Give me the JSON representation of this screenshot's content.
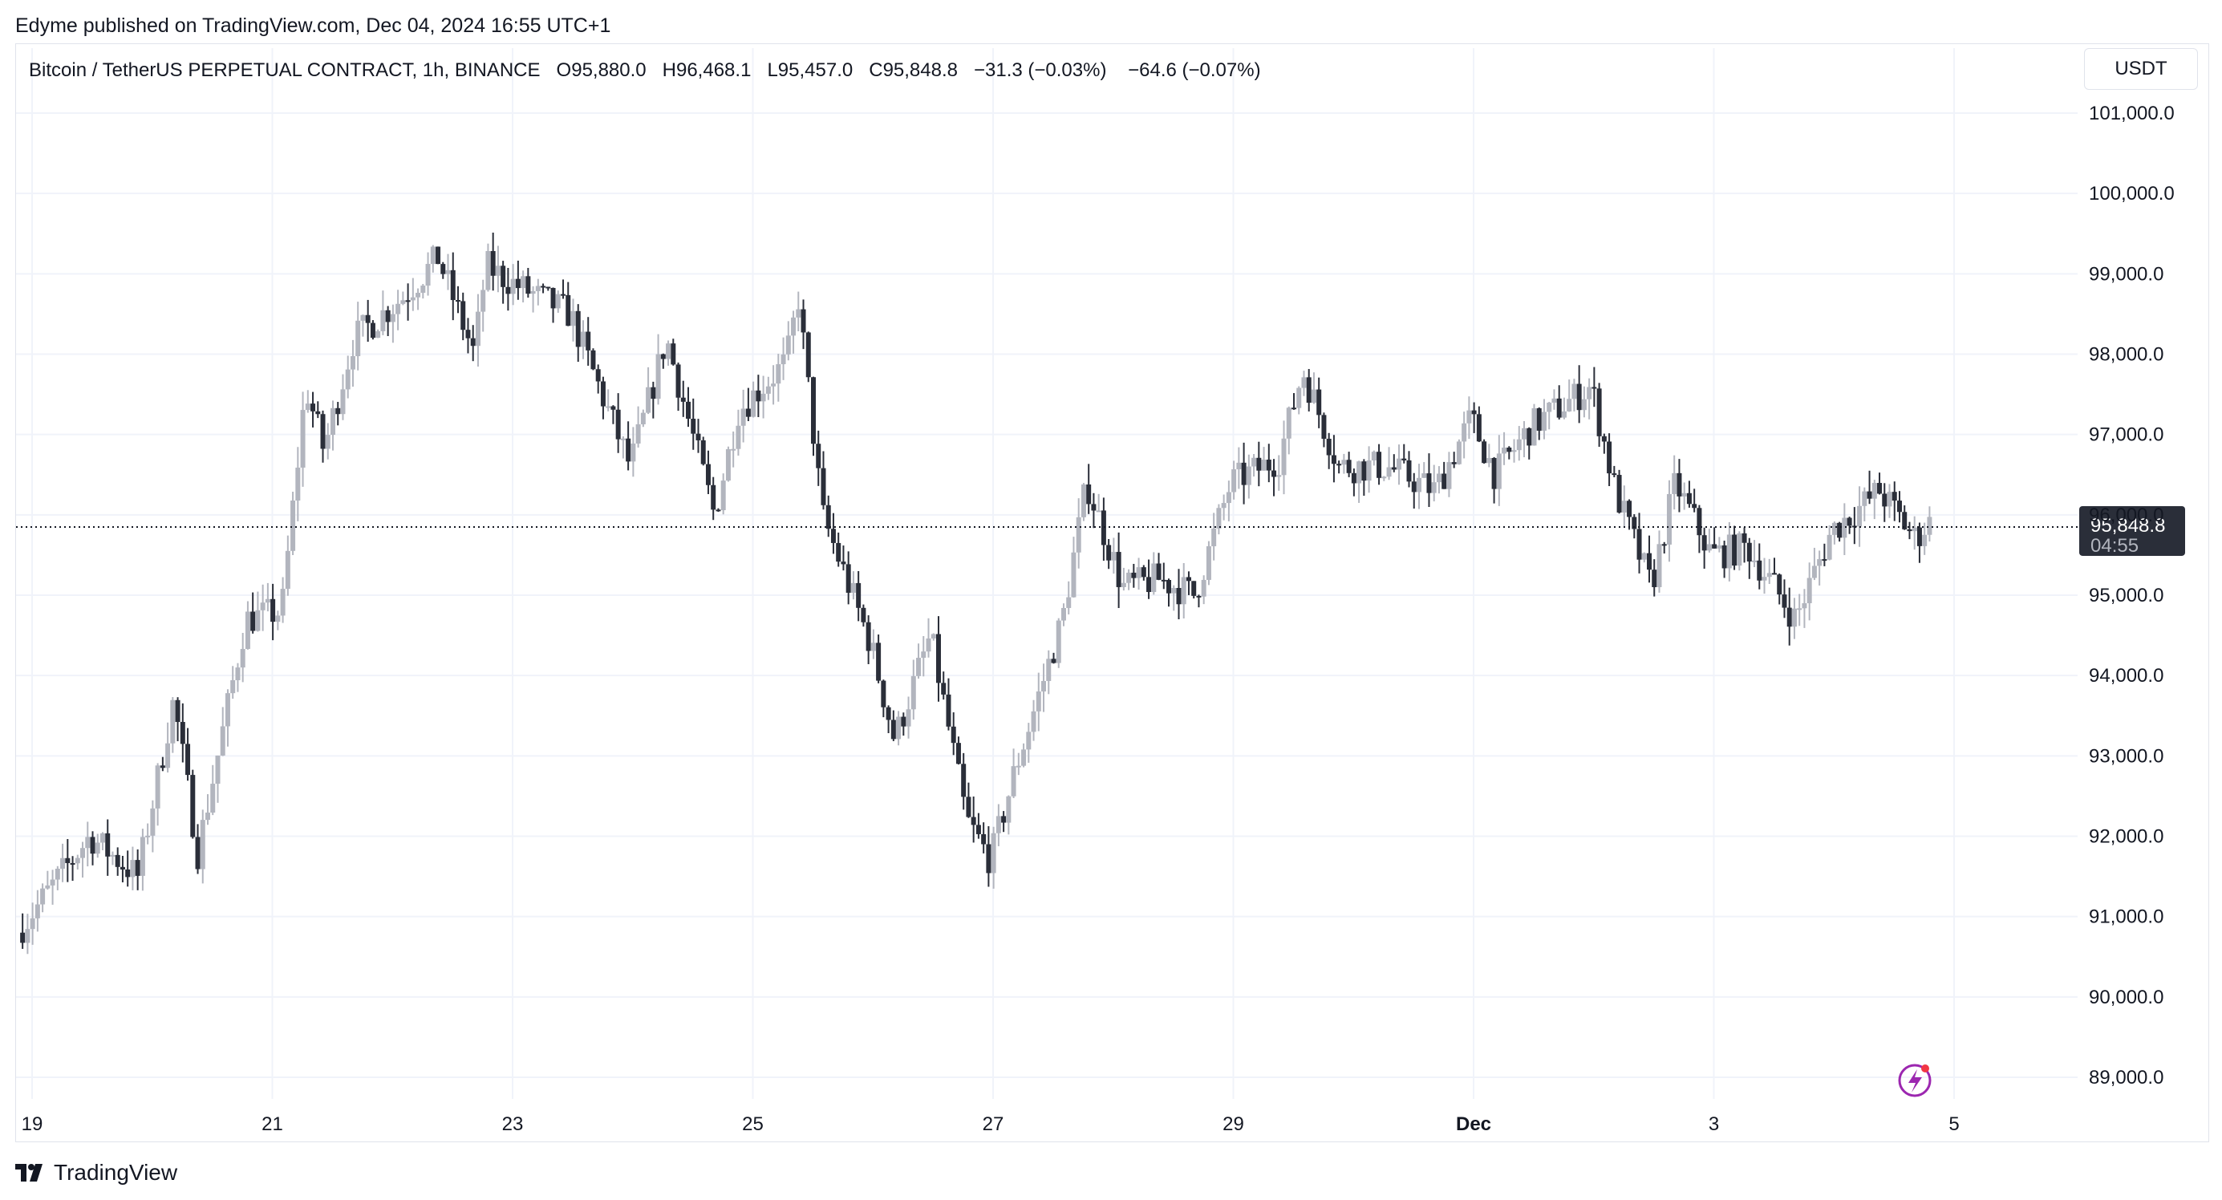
{
  "header": {
    "published_text": "Edyme published on TradingView.com, Dec 04, 2024 16:55 UTC+1"
  },
  "legend": {
    "symbol": "Bitcoin / TetherUS PERPETUAL CONTRACT, 1h, BINANCE",
    "open": "O95,880.0",
    "high": "H96,468.1",
    "low": "L95,457.0",
    "close": "C95,848.8",
    "change": "−31.3 (−0.03%)",
    "change2": "−64.6 (−0.07%)"
  },
  "currency_button": "USDT",
  "footer": {
    "logo_text": "TradingView"
  },
  "colors": {
    "up_candle": "#b2b5be",
    "down_candle": "#2a2e39",
    "grid": "#f0f3fa",
    "price_tag_bg": "#2a2e39",
    "price_tag_text": "#ffffff",
    "lightning_icon": "#9c27b0",
    "lightning_dot": "#f23645"
  },
  "chart_data": {
    "type": "candlestick",
    "title": "Bitcoin / TetherUS PERPETUAL CONTRACT, 1h, BINANCE",
    "interval": "1h",
    "ylim": [
      88800,
      101300
    ],
    "y_ticks": [
      "101,000.0",
      "100,000.0",
      "99,000.0",
      "98,000.0",
      "97,000.0",
      "96,000.0",
      "95,000.0",
      "94,000.0",
      "93,000.0",
      "92,000.0",
      "91,000.0",
      "90,000.0",
      "89,000.0"
    ],
    "y_tick_values": [
      101000,
      100000,
      99000,
      98000,
      97000,
      96000,
      95000,
      94000,
      93000,
      92000,
      91000,
      90000,
      89000
    ],
    "x_ticks": [
      "19",
      "21",
      "23",
      "25",
      "27",
      "29",
      "Dec",
      "3",
      "5"
    ],
    "x_tick_days": [
      19,
      21,
      23,
      25,
      27,
      29,
      31,
      33,
      35
    ],
    "x_start_day": 18.9,
    "x_end_day": 36.0,
    "last_price": "95,848.8",
    "last_price_value": 95848.8,
    "countdown": "04:55",
    "grid": true,
    "path_anchors": [
      [
        18.9,
        90800
      ],
      [
        19.5,
        92000
      ],
      [
        19.9,
        91500
      ],
      [
        20.2,
        93700
      ],
      [
        20.4,
        91800
      ],
      [
        20.8,
        94700
      ],
      [
        21.1,
        94800
      ],
      [
        21.3,
        97600
      ],
      [
        21.45,
        96800
      ],
      [
        21.7,
        98200
      ],
      [
        22.1,
        98700
      ],
      [
        22.4,
        99200
      ],
      [
        22.7,
        98000
      ],
      [
        22.8,
        99100
      ],
      [
        23.0,
        98900
      ],
      [
        23.5,
        98500
      ],
      [
        24.0,
        96600
      ],
      [
        24.3,
        98200
      ],
      [
        24.7,
        96000
      ],
      [
        24.9,
        97300
      ],
      [
        25.3,
        97900
      ],
      [
        25.4,
        98700
      ],
      [
        25.6,
        96000
      ],
      [
        26.0,
        94400
      ],
      [
        26.2,
        93200
      ],
      [
        26.5,
        94500
      ],
      [
        26.8,
        92200
      ],
      [
        27.0,
        91700
      ],
      [
        27.2,
        92800
      ],
      [
        27.6,
        94700
      ],
      [
        27.8,
        96400
      ],
      [
        28.1,
        95100
      ],
      [
        28.4,
        95200
      ],
      [
        28.7,
        95000
      ],
      [
        29.0,
        96400
      ],
      [
        29.4,
        96700
      ],
      [
        29.6,
        97800
      ],
      [
        29.9,
        96600
      ],
      [
        30.3,
        96600
      ],
      [
        30.7,
        96300
      ],
      [
        31.0,
        97200
      ],
      [
        31.2,
        96500
      ],
      [
        31.5,
        97100
      ],
      [
        32.0,
        97600
      ],
      [
        32.2,
        96300
      ],
      [
        32.5,
        95100
      ],
      [
        32.7,
        96400
      ],
      [
        33.0,
        95500
      ],
      [
        33.3,
        95600
      ],
      [
        33.7,
        94700
      ],
      [
        34.0,
        95800
      ],
      [
        34.4,
        96300
      ],
      [
        34.7,
        95700
      ],
      [
        34.8,
        95900
      ]
    ]
  }
}
